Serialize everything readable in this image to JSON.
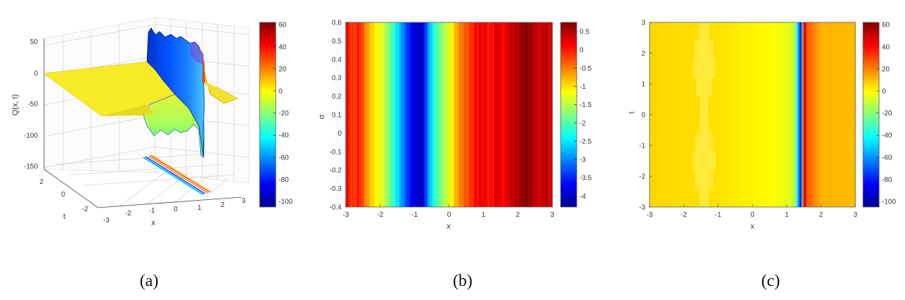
{
  "colormap": [
    "#00008f",
    "#0000ff",
    "#0080ff",
    "#00ffff",
    "#80ff80",
    "#ffff00",
    "#ff8000",
    "#ff0000",
    "#800000"
  ],
  "panels": {
    "a": {
      "caption": "(a)"
    },
    "b": {
      "caption": "(b)"
    },
    "c": {
      "caption": "(c)"
    }
  },
  "chart_data": [
    {
      "type": "surface-3d",
      "zlabel": "Q(x, t)",
      "xlabel": "x",
      "ylabel": "t",
      "x_ticks": [
        "-3",
        "-2",
        "-1",
        "0",
        "1",
        "2",
        "3"
      ],
      "t_ticks": [
        "2",
        "0",
        "-2"
      ],
      "z_ticks": [
        "50",
        "0",
        "-50",
        "-100",
        "-150"
      ],
      "xlim": [
        -3,
        3
      ],
      "ylim": [
        -3,
        3
      ],
      "zlim": [
        -150,
        60
      ],
      "colorbar_ticks": [
        "60",
        "40",
        "20",
        "0",
        "-20",
        "-40",
        "-60",
        "-80",
        "-100"
      ],
      "colorbar_range": [
        -105,
        62
      ],
      "surface": {
        "plateau_value": 0,
        "spike_x": 1.4,
        "spike_max": 55,
        "spike_min": -95
      }
    },
    {
      "type": "heatmap",
      "xlabel": "x",
      "ylabel": "σ",
      "xlim": [
        -3,
        3
      ],
      "ylim": [
        -0.4,
        0.6
      ],
      "x_ticks": [
        "-3",
        "-2",
        "-1",
        "0",
        "1",
        "2",
        "3"
      ],
      "y_ticks": [
        "0.6",
        "0.5",
        "0.4",
        "0.3",
        "0.2",
        "0.1",
        "0",
        "-0.1",
        "-0.2",
        "-0.3",
        "-0.4"
      ],
      "colorbar_ticks": [
        "0.5",
        "0",
        "-0.5",
        "-1",
        "-1.5",
        "-2",
        "-2.5",
        "-3",
        "-3.5",
        "-4"
      ],
      "colorbar_range": [
        -4.3,
        0.75
      ],
      "profile": [
        {
          "x": -3.0,
          "v": 0.2
        },
        {
          "x": -2.8,
          "v": -0.2
        },
        {
          "x": -2.6,
          "v": 0.0
        },
        {
          "x": -2.4,
          "v": -0.6
        },
        {
          "x": -2.2,
          "v": -1.0
        },
        {
          "x": -2.0,
          "v": -1.2
        },
        {
          "x": -1.8,
          "v": -1.6
        },
        {
          "x": -1.6,
          "v": -2.2
        },
        {
          "x": -1.4,
          "v": -2.8
        },
        {
          "x": -1.2,
          "v": -3.4
        },
        {
          "x": -1.0,
          "v": -3.9
        },
        {
          "x": -0.8,
          "v": -4.1
        },
        {
          "x": -0.6,
          "v": -2.9
        },
        {
          "x": -0.4,
          "v": -2.1
        },
        {
          "x": -0.2,
          "v": -1.7
        },
        {
          "x": 0.0,
          "v": -1.3
        },
        {
          "x": 0.2,
          "v": -0.8
        },
        {
          "x": 0.4,
          "v": -0.4
        },
        {
          "x": 0.6,
          "v": -0.2
        },
        {
          "x": 0.8,
          "v": 0.1
        },
        {
          "x": 1.0,
          "v": 0.2
        },
        {
          "x": 1.2,
          "v": 0.0
        },
        {
          "x": 1.4,
          "v": 0.3
        },
        {
          "x": 1.6,
          "v": 0.1
        },
        {
          "x": 1.8,
          "v": 0.4
        },
        {
          "x": 2.0,
          "v": 0.5
        },
        {
          "x": 2.2,
          "v": 0.7
        },
        {
          "x": 2.4,
          "v": 0.6
        },
        {
          "x": 2.6,
          "v": 0.3
        },
        {
          "x": 2.8,
          "v": 0.5
        },
        {
          "x": 3.0,
          "v": 0.2
        }
      ]
    },
    {
      "type": "heatmap",
      "xlabel": "x",
      "ylabel": "t",
      "xlim": [
        -3,
        3
      ],
      "ylim": [
        -3,
        3
      ],
      "x_ticks": [
        "-3",
        "-2",
        "-1",
        "0",
        "1",
        "2",
        "3"
      ],
      "y_ticks": [
        "3",
        "2",
        "1",
        "0",
        "-1",
        "-2",
        "-3"
      ],
      "colorbar_ticks": [
        "60",
        "40",
        "20",
        "0",
        "-20",
        "-40",
        "-60",
        "-80",
        "-100"
      ],
      "colorbar_range": [
        -105,
        62
      ],
      "profile": [
        {
          "x": -3.0,
          "v": 6
        },
        {
          "x": -1.0,
          "v": 4
        },
        {
          "x": 0.5,
          "v": 0
        },
        {
          "x": 1.1,
          "v": -5
        },
        {
          "x": 1.25,
          "v": -15
        },
        {
          "x": 1.35,
          "v": -60
        },
        {
          "x": 1.42,
          "v": -100
        },
        {
          "x": 1.5,
          "v": 60
        },
        {
          "x": 1.58,
          "v": 28
        },
        {
          "x": 2.0,
          "v": 12
        },
        {
          "x": 3.0,
          "v": 10
        }
      ]
    }
  ]
}
